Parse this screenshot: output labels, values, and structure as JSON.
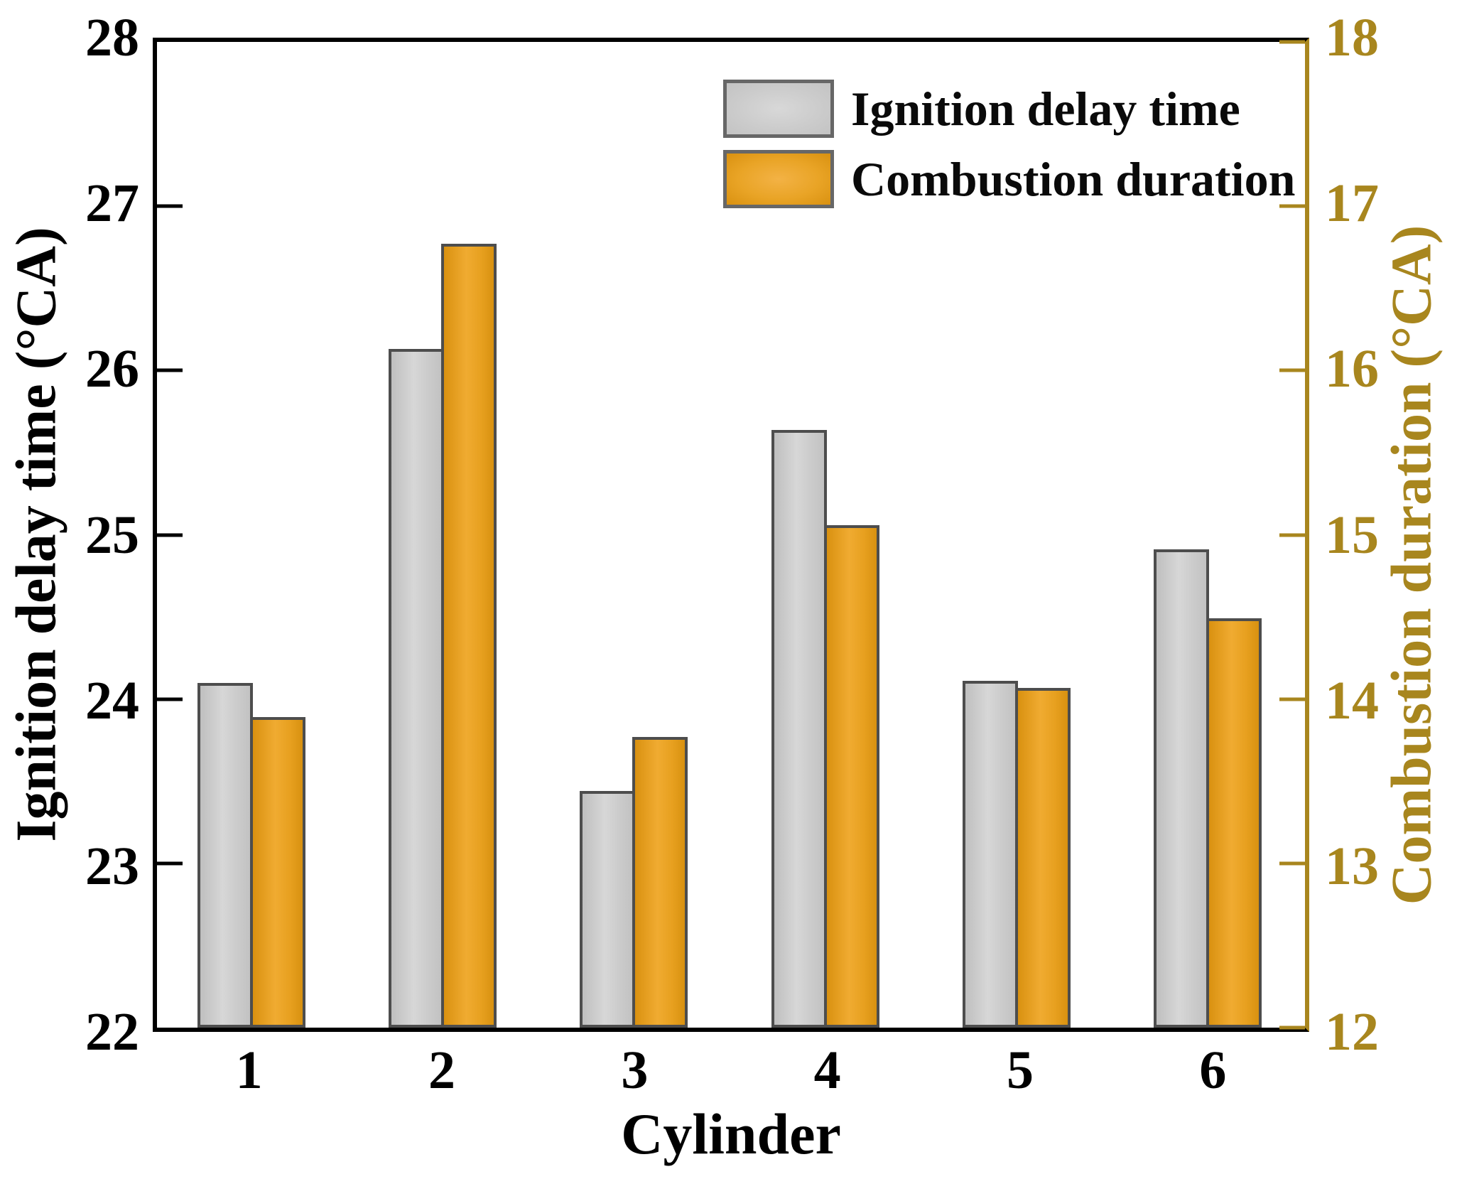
{
  "figure": {
    "background": "#ffffff",
    "frame_color": "#000000",
    "right_axis_color": "#a8861e"
  },
  "chart_data": {
    "type": "bar",
    "title": "",
    "xlabel": "Cylinder",
    "categories": [
      "1",
      "2",
      "3",
      "4",
      "5",
      "6"
    ],
    "left_axis": {
      "label": "Ignition delay time (°CA)",
      "min": 22,
      "max": 28,
      "ticks": [
        22,
        23,
        24,
        25,
        26,
        27,
        28
      ],
      "color": "#000000"
    },
    "right_axis": {
      "label": "Combustion duration (°CA)",
      "min": 12,
      "max": 18,
      "ticks": [
        12,
        13,
        14,
        15,
        16,
        17,
        18
      ],
      "color": "#a8861e"
    },
    "series": [
      {
        "name": "Ignition delay time",
        "axis": "left",
        "color": "#cccccc",
        "border_color": "#4d4d4d",
        "values": [
          24.1,
          26.13,
          23.44,
          25.64,
          24.11,
          24.91
        ]
      },
      {
        "name": "Combustion duration",
        "axis": "right",
        "color": "#e7a01f",
        "border_color": "#4d4d4d",
        "values": [
          13.89,
          16.77,
          13.77,
          15.06,
          14.07,
          14.49
        ]
      }
    ],
    "legend": {
      "position": "top-right",
      "entries": [
        "Ignition delay time",
        "Combustion duration"
      ]
    },
    "grid": false
  }
}
